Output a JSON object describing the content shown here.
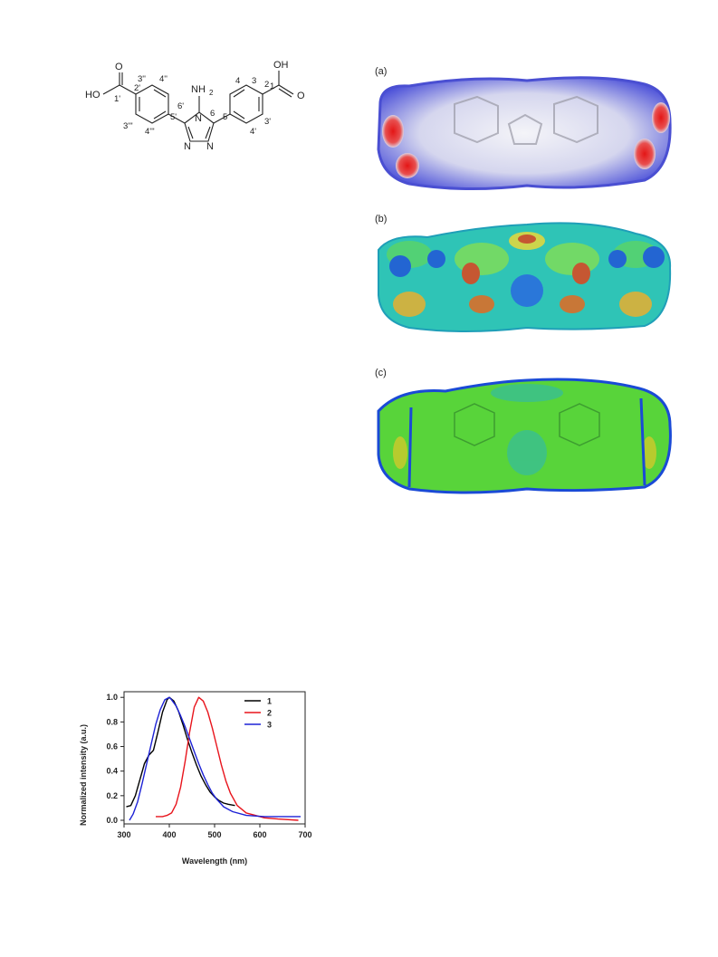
{
  "molecule": {
    "labels": {
      "cooh_left_o": "O",
      "cooh_left_oh": "HO",
      "cooh_right_o": "O",
      "cooh_right_oh": "OH",
      "nh2": "NH",
      "nh2_sub": "2",
      "n1": "N",
      "n_left": "N",
      "n_right": "N",
      "pos_1": "1",
      "pos_1p": "1'",
      "pos_2": "2",
      "pos_2p": "2'",
      "pos_3": "3",
      "pos_3p": "3'",
      "pos_3pp": "3''",
      "pos_3ppp": "3'''",
      "pos_4": "4",
      "pos_4p": "4'",
      "pos_4pp": "4''",
      "pos_4ppp": "4'''",
      "pos_5": "5",
      "pos_5p": "5'",
      "pos_6": "6",
      "pos_6p": "6'"
    }
  },
  "panels": {
    "a": {
      "label": "(a)"
    },
    "b": {
      "label": "(b)"
    },
    "c": {
      "label": "(c)"
    }
  },
  "colors": {
    "series_1": "#000000",
    "series_2": "#e8141c",
    "series_3": "#1d22d6"
  },
  "chart_data": {
    "type": "line",
    "title": "",
    "xlabel": "Wavelength (nm)",
    "ylabel": "Normalized intensity (a.u.)",
    "xlim": [
      300,
      700
    ],
    "ylim": [
      0.0,
      1.0
    ],
    "xticks": [
      "300",
      "400",
      "500",
      "600",
      "700"
    ],
    "yticks": [
      "0.0",
      "0.2",
      "0.4",
      "0.6",
      "0.8",
      "1.0"
    ],
    "legend_position": "top-right",
    "series": [
      {
        "name": "1",
        "color": "#000000",
        "x": [
          305,
          315,
          325,
          335,
          345,
          355,
          365,
          375,
          385,
          395,
          400,
          410,
          420,
          430,
          440,
          450,
          460,
          470,
          480,
          490,
          500,
          510,
          520,
          530,
          545
        ],
        "y": [
          0.11,
          0.12,
          0.2,
          0.33,
          0.46,
          0.53,
          0.57,
          0.72,
          0.88,
          0.98,
          1.0,
          0.97,
          0.89,
          0.78,
          0.66,
          0.55,
          0.45,
          0.36,
          0.29,
          0.23,
          0.19,
          0.16,
          0.14,
          0.13,
          0.12
        ]
      },
      {
        "name": "2",
        "color": "#e8141c",
        "x": [
          370,
          385,
          395,
          405,
          415,
          425,
          435,
          445,
          455,
          465,
          475,
          485,
          495,
          505,
          515,
          525,
          535,
          550,
          570,
          590,
          610,
          640,
          685
        ],
        "y": [
          0.03,
          0.03,
          0.04,
          0.06,
          0.13,
          0.27,
          0.48,
          0.72,
          0.92,
          1.0,
          0.97,
          0.88,
          0.75,
          0.6,
          0.45,
          0.32,
          0.22,
          0.12,
          0.06,
          0.04,
          0.02,
          0.01,
          0.0
        ]
      },
      {
        "name": "3",
        "color": "#1d22d6",
        "x": [
          312,
          320,
          330,
          340,
          350,
          360,
          370,
          380,
          390,
          400,
          405,
          415,
          425,
          435,
          445,
          455,
          465,
          475,
          485,
          495,
          505,
          520,
          540,
          570,
          610,
          650,
          690
        ],
        "y": [
          0.0,
          0.05,
          0.15,
          0.3,
          0.46,
          0.62,
          0.78,
          0.9,
          0.98,
          1.0,
          0.98,
          0.93,
          0.85,
          0.76,
          0.66,
          0.56,
          0.46,
          0.37,
          0.29,
          0.22,
          0.17,
          0.11,
          0.07,
          0.04,
          0.03,
          0.03,
          0.03
        ]
      }
    ]
  }
}
